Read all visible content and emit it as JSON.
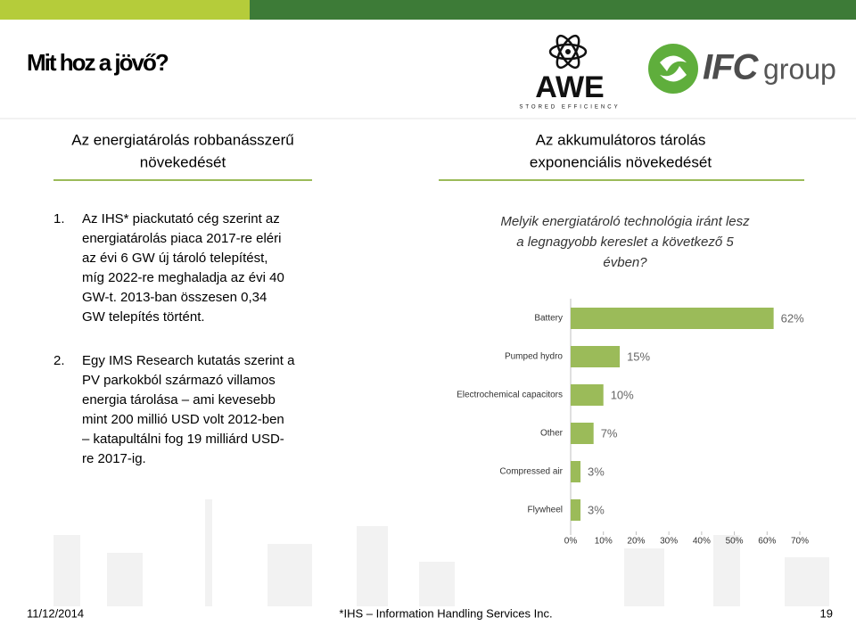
{
  "header": {
    "title": "Mit hoz a jövő?",
    "awe_logo": "AWE",
    "awe_tagline": "STORED EFFICIENCY",
    "ifc_logo": "IFC",
    "ifc_logo_suffix": "group"
  },
  "left": {
    "heading": [
      "Az energiatárolás robbanásszerű",
      "növekedését"
    ],
    "items": [
      {
        "number": "1.",
        "lines": [
          "Az IHS* piackutató cég szerint az",
          "energiatárolás piaca 2017-re eléri",
          "az évi 6 GW új tároló telepítést,",
          "míg 2022-re meghaladja az évi 40",
          "GW-t. 2013-ban összesen 0,34",
          "GW telepítés történt."
        ]
      },
      {
        "number": "2.",
        "lines": [
          "Egy IMS Research kutatás szerint a",
          "PV parkokból származó villamos",
          "energia tárolása – ami kevesebb",
          "mint 200 millió USD volt 2012-ben",
          "– katapultálni fog 19 milliárd USD-",
          "re 2017-ig."
        ]
      }
    ]
  },
  "right": {
    "heading": [
      "Az akkumulátoros tárolás",
      "exponenciális növekedését"
    ],
    "question": [
      "Melyik energiatároló technológia iránt lesz",
      "a legnagyobb kereslet a következő 5",
      "évben?"
    ]
  },
  "chart_data": {
    "type": "bar",
    "orientation": "horizontal",
    "categories": [
      "Battery",
      "Pumped hydro",
      "Electrochemical capacitors",
      "Other",
      "Compressed air",
      "Flywheel"
    ],
    "values": [
      62,
      15,
      10,
      7,
      3,
      3
    ],
    "value_labels": [
      "62%",
      "15%",
      "10%",
      "7%",
      "3%",
      "3%"
    ],
    "color": "#9bbb59",
    "xlim": [
      0,
      70
    ],
    "xticks": [
      {
        "value": 0,
        "label": "0%"
      },
      {
        "value": 10,
        "label": "10%"
      },
      {
        "value": 20,
        "label": "20%"
      },
      {
        "value": 30,
        "label": "30%"
      },
      {
        "value": 40,
        "label": "40%"
      },
      {
        "value": 50,
        "label": "50%"
      },
      {
        "value": 60,
        "label": "60%"
      },
      {
        "value": 70,
        "label": "70%"
      }
    ]
  },
  "footer": {
    "date": "11/12/2014",
    "note": "*IHS – Information Handling Services Inc.",
    "page": "19"
  }
}
